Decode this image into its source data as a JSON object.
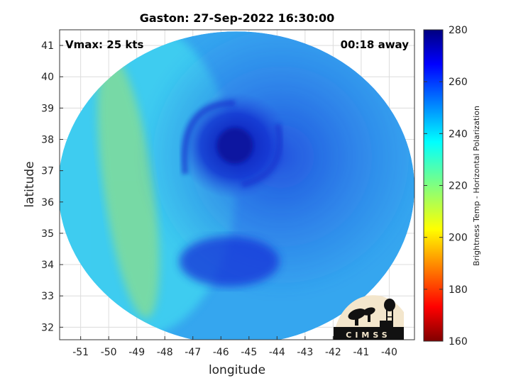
{
  "chart_data": {
    "type": "heatmap",
    "title": "Gaston: 27-Sep-2022 16:30:00",
    "annotations": {
      "vmax": "Vmax: 25 kts",
      "time_away": "00:18 away"
    },
    "xlabel": "longitude",
    "ylabel": "latitude",
    "xlim": [
      -51.75,
      -39.1
    ],
    "ylim": [
      31.6,
      41.5
    ],
    "xticks": [
      -51,
      -50,
      -49,
      -48,
      -47,
      -46,
      -45,
      -44,
      -43,
      -42,
      -41,
      -40
    ],
    "yticks": [
      32,
      33,
      34,
      35,
      36,
      37,
      38,
      39,
      40,
      41
    ],
    "grid": true,
    "swath": {
      "center": [
        -45.45,
        36.45
      ],
      "radius_lon": 6.35,
      "radius_lat": 5.0
    },
    "storm_center": [
      -45.5,
      37.8
    ],
    "colorbar": {
      "label": "Brightness Temp - Horizontal Polarization",
      "range": [
        160,
        280
      ],
      "ticks": [
        160,
        180,
        200,
        220,
        240,
        260,
        280
      ],
      "colormap": "jet"
    },
    "features": [
      {
        "name": "eye",
        "lon": -45.5,
        "lat": 37.8,
        "value": 268
      },
      {
        "name": "spiral-band-south",
        "lon": -45.7,
        "lat": 34.1,
        "value": 266
      },
      {
        "name": "warm-arc-west",
        "lon": -49.3,
        "lat": 36.5,
        "value": 225
      }
    ]
  },
  "logo": {
    "text": "CIMSS"
  }
}
